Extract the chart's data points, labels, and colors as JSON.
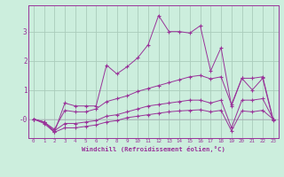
{
  "xlabel": "Windchill (Refroidissement éolien,°C)",
  "background_color": "#cceedd",
  "grid_color": "#aaccbb",
  "line_color": "#993399",
  "xlim": [
    -0.5,
    23.5
  ],
  "ylim": [
    -0.65,
    3.9
  ],
  "xticks": [
    0,
    1,
    2,
    3,
    4,
    5,
    6,
    7,
    8,
    9,
    10,
    11,
    12,
    13,
    14,
    15,
    16,
    17,
    18,
    19,
    20,
    21,
    22,
    23
  ],
  "yticks": [
    0,
    1,
    2,
    3
  ],
  "ytick_labels": [
    "-0",
    "1",
    "2",
    "3"
  ],
  "series": [
    [
      0.0,
      -0.15,
      -0.45,
      0.55,
      0.45,
      0.45,
      0.45,
      1.85,
      1.55,
      1.8,
      2.1,
      2.55,
      3.55,
      3.0,
      3.0,
      2.95,
      3.2,
      1.65,
      2.45,
      0.45,
      1.4,
      1.0,
      1.4,
      -0.05
    ],
    [
      0.0,
      -0.1,
      -0.35,
      0.3,
      0.25,
      0.25,
      0.35,
      0.6,
      0.7,
      0.8,
      0.95,
      1.05,
      1.15,
      1.25,
      1.35,
      1.45,
      1.5,
      1.38,
      1.45,
      0.5,
      1.4,
      1.4,
      1.45,
      0.0
    ],
    [
      0.0,
      -0.1,
      -0.4,
      -0.15,
      -0.15,
      -0.1,
      -0.05,
      0.1,
      0.15,
      0.25,
      0.35,
      0.45,
      0.5,
      0.55,
      0.6,
      0.65,
      0.65,
      0.55,
      0.65,
      -0.3,
      0.65,
      0.65,
      0.7,
      0.0
    ],
    [
      0.0,
      -0.1,
      -0.45,
      -0.3,
      -0.3,
      -0.25,
      -0.2,
      -0.1,
      -0.05,
      0.05,
      0.1,
      0.15,
      0.2,
      0.25,
      0.28,
      0.3,
      0.32,
      0.25,
      0.3,
      -0.4,
      0.28,
      0.25,
      0.3,
      0.0
    ]
  ]
}
